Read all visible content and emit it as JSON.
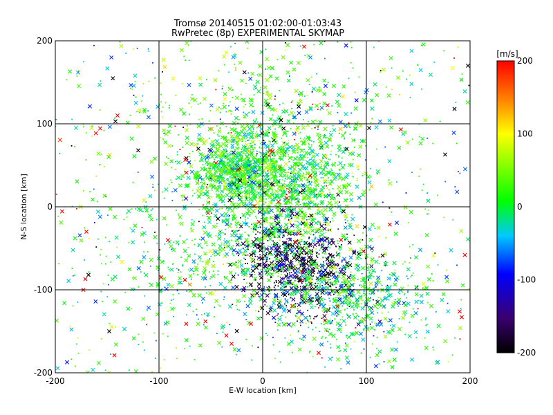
{
  "chart_data": {
    "type": "scatter",
    "title": "Tromsø 20140515 01:02:00-01:03:43",
    "subtitle": "RwPretec (8p) EXPERIMENTAL SKYMAP",
    "xlabel": "E-W location [km]",
    "ylabel": "N-S location [km]",
    "xlim": [
      -200,
      200
    ],
    "ylim": [
      -200,
      200
    ],
    "x_ticks": [
      -200,
      -100,
      0,
      100,
      200
    ],
    "y_ticks": [
      -200,
      -100,
      0,
      100,
      200
    ],
    "grid": true,
    "marker_types": [
      "cross",
      "dot"
    ],
    "colorbar": {
      "label": "[m/s]",
      "range": [
        -200,
        200
      ],
      "ticks": [
        200,
        100,
        0,
        -100,
        -200
      ],
      "colormap": [
        "#000000",
        "#3a0070",
        "#0000ff",
        "#00c8ff",
        "#00ff00",
        "#ffff00",
        "#ff8000",
        "#ff0000"
      ]
    },
    "clusters": [
      {
        "x": 20,
        "y": 20,
        "sx": 35,
        "sy": 40,
        "weight": 0.28,
        "velocity": 5
      },
      {
        "x": -30,
        "y": 45,
        "sx": 20,
        "sy": 18,
        "weight": 0.15,
        "velocity": 0
      },
      {
        "x": 35,
        "y": -70,
        "sx": 30,
        "sy": 30,
        "weight": 0.16,
        "velocity": -180
      },
      {
        "x": 80,
        "y": -110,
        "sx": 40,
        "sy": 30,
        "weight": 0.16,
        "velocity": -10
      },
      {
        "x": 0,
        "y": 80,
        "sx": 60,
        "sy": 60,
        "weight": 0.15,
        "velocity": 15
      },
      {
        "x": -60,
        "y": -60,
        "sx": 50,
        "sy": 50,
        "weight": 0.1,
        "velocity": -5
      }
    ],
    "notable_points": [
      {
        "x": -186,
        "y": 163,
        "velocity": 5,
        "marker": "cross"
      },
      {
        "x": -180,
        "y": 95,
        "velocity": -25,
        "marker": "cross"
      },
      {
        "x": -170,
        "y": -30,
        "velocity": 200,
        "marker": "cross"
      },
      {
        "x": -168,
        "y": -82,
        "velocity": -200,
        "marker": "cross"
      },
      {
        "x": -173,
        "y": -100,
        "velocity": 200,
        "marker": "cross"
      },
      {
        "x": -148,
        "y": -150,
        "velocity": -200,
        "marker": "cross"
      },
      {
        "x": -140,
        "y": 110,
        "velocity": 200,
        "marker": "cross"
      },
      {
        "x": -142,
        "y": 103,
        "velocity": -200,
        "marker": "cross"
      },
      {
        "x": -120,
        "y": 68,
        "velocity": -200,
        "marker": "cross"
      },
      {
        "x": -110,
        "y": 108,
        "velocity": -70,
        "marker": "cross"
      },
      {
        "x": -123,
        "y": 158,
        "velocity": -30,
        "marker": "cross"
      },
      {
        "x": -104,
        "y": 58,
        "velocity": 10,
        "marker": "cross"
      },
      {
        "x": -98,
        "y": -85,
        "velocity": 200,
        "marker": "cross"
      },
      {
        "x": -75,
        "y": -88,
        "velocity": 200,
        "marker": "cross"
      },
      {
        "x": -62,
        "y": 70,
        "velocity": -200,
        "marker": "cross"
      },
      {
        "x": 40,
        "y": 193,
        "velocity": 200,
        "marker": "cross"
      },
      {
        "x": 46,
        "y": 180,
        "velocity": -60,
        "marker": "cross"
      },
      {
        "x": 185,
        "y": 118,
        "velocity": -200,
        "marker": "cross"
      },
      {
        "x": 198,
        "y": 170,
        "velocity": -200,
        "marker": "cross"
      },
      {
        "x": 176,
        "y": 63,
        "velocity": -200,
        "marker": "cross"
      },
      {
        "x": 190,
        "y": -126,
        "velocity": 200,
        "marker": "cross"
      },
      {
        "x": 195,
        "y": -58,
        "velocity": 200,
        "marker": "cross"
      },
      {
        "x": 192,
        "y": -133,
        "velocity": 200,
        "marker": "cross"
      },
      {
        "x": 168,
        "y": -188,
        "velocity": -20,
        "marker": "cross"
      },
      {
        "x": -30,
        "y": -165,
        "velocity": 200,
        "marker": "cross"
      },
      {
        "x": 54,
        "y": -176,
        "velocity": 200,
        "marker": "cross"
      },
      {
        "x": -35,
        "y": -155,
        "velocity": 200,
        "marker": "cross"
      }
    ]
  }
}
